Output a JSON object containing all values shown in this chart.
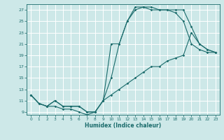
{
  "xlabel": "Humidex (Indice chaleur)",
  "bg_color": "#cde8e8",
  "grid_color": "#ffffff",
  "line_color": "#1a6b6b",
  "xlim": [
    -0.5,
    23.5
  ],
  "ylim": [
    8.5,
    28
  ],
  "xticks": [
    0,
    1,
    2,
    3,
    4,
    5,
    6,
    7,
    8,
    9,
    10,
    11,
    12,
    13,
    14,
    15,
    16,
    17,
    18,
    19,
    20,
    21,
    22,
    23
  ],
  "yticks": [
    9,
    11,
    13,
    15,
    17,
    19,
    21,
    23,
    25,
    27
  ],
  "line1_x": [
    0,
    1,
    2,
    3,
    4,
    5,
    6,
    7,
    8,
    9,
    10,
    11,
    12,
    13,
    14,
    15,
    16,
    17,
    18,
    19,
    20,
    21,
    22,
    23
  ],
  "line1_y": [
    12,
    10.5,
    10,
    10,
    9.5,
    9.5,
    9,
    8.5,
    9,
    11,
    21,
    21,
    25,
    27,
    27.5,
    27.5,
    27,
    27,
    26.5,
    25,
    21,
    20,
    19.5,
    19.5
  ],
  "line2_x": [
    0,
    1,
    2,
    3,
    4,
    5,
    6,
    7,
    8,
    9,
    10,
    11,
    12,
    13,
    14,
    15,
    16,
    17,
    18,
    19,
    20,
    21,
    22,
    23
  ],
  "line2_y": [
    12,
    10.5,
    10,
    11,
    10,
    10,
    10,
    9,
    9,
    11,
    15,
    21,
    25,
    27.5,
    27.5,
    27,
    27,
    27,
    27,
    27,
    24,
    21,
    20,
    19.5
  ],
  "line3_x": [
    0,
    1,
    2,
    3,
    4,
    5,
    6,
    7,
    8,
    9,
    10,
    11,
    12,
    13,
    14,
    15,
    16,
    17,
    18,
    19,
    20,
    21,
    22,
    23
  ],
  "line3_y": [
    12,
    10.5,
    10,
    11,
    10,
    10,
    10,
    9,
    9,
    11,
    12,
    13,
    14,
    15,
    16,
    17,
    17,
    18,
    18.5,
    19,
    23,
    21,
    20,
    19.5
  ]
}
